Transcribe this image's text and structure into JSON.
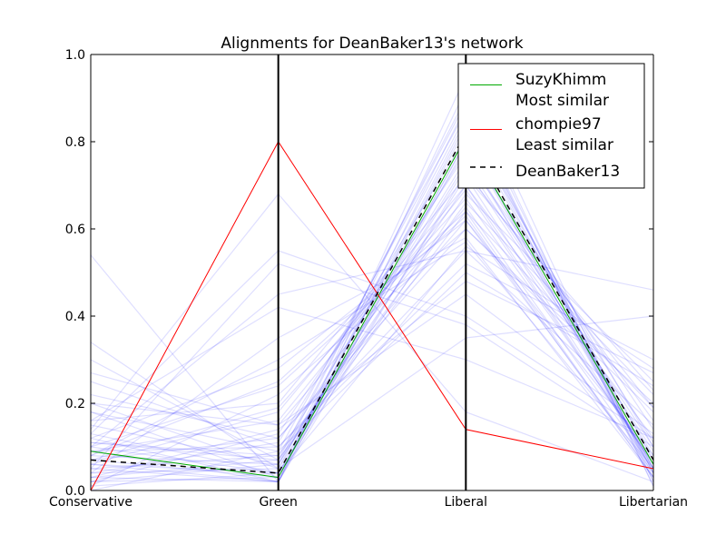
{
  "chart_data": {
    "type": "line",
    "title": "Alignments for DeanBaker13's network",
    "categories": [
      "Conservative",
      "Green",
      "Liberal",
      "Libertarian"
    ],
    "ylim": [
      0.0,
      1.0
    ],
    "yticks": [
      "0.0",
      "0.2",
      "0.4",
      "0.6",
      "0.8",
      "1.0"
    ],
    "grid": false,
    "legend_placement": "top-right",
    "colors": {
      "most_similar": "#00aa00",
      "least_similar": "#ff0000",
      "focus": "#000000",
      "background_lines": "#0000ff"
    },
    "legend": [
      {
        "line1": "SuzyKhimm",
        "line2": "Most similar",
        "style": "solid",
        "color": "#00aa00"
      },
      {
        "line1": "chompie97",
        "line2": "Least similar",
        "style": "solid",
        "color": "#ff0000"
      },
      {
        "line1": "DeanBaker13",
        "line2": "",
        "style": "dashed",
        "color": "#000000"
      }
    ],
    "series": [
      {
        "name": "SuzyKhimm",
        "role": "most_similar",
        "values": [
          0.09,
          0.03,
          0.81,
          0.06
        ]
      },
      {
        "name": "chompie97",
        "role": "least_similar",
        "values": [
          0.0,
          0.8,
          0.14,
          0.05
        ]
      },
      {
        "name": "DeanBaker13",
        "role": "focus",
        "values": [
          0.07,
          0.04,
          0.82,
          0.07
        ]
      }
    ],
    "background_series": [
      [
        0.54,
        0.02,
        0.8,
        0.05
      ],
      [
        0.34,
        0.05,
        0.75,
        0.1
      ],
      [
        0.3,
        0.07,
        0.7,
        0.12
      ],
      [
        0.25,
        0.1,
        0.55,
        0.15
      ],
      [
        0.22,
        0.12,
        0.62,
        0.08
      ],
      [
        0.2,
        0.15,
        0.65,
        0.05
      ],
      [
        0.18,
        0.03,
        0.85,
        0.04
      ],
      [
        0.16,
        0.2,
        0.72,
        0.06
      ],
      [
        0.15,
        0.06,
        0.9,
        0.03
      ],
      [
        0.14,
        0.68,
        0.18,
        0.02
      ],
      [
        0.13,
        0.55,
        0.4,
        0.12
      ],
      [
        0.12,
        0.28,
        0.62,
        0.04
      ],
      [
        0.11,
        0.08,
        0.78,
        0.05
      ],
      [
        0.1,
        0.45,
        0.55,
        0.46
      ],
      [
        0.1,
        0.04,
        0.68,
        0.25
      ],
      [
        0.09,
        0.1,
        0.52,
        0.3
      ],
      [
        0.09,
        0.02,
        0.88,
        0.02
      ],
      [
        0.08,
        0.06,
        0.74,
        0.09
      ],
      [
        0.08,
        0.25,
        0.64,
        0.03
      ],
      [
        0.07,
        0.03,
        0.8,
        0.11
      ],
      [
        0.07,
        0.12,
        0.6,
        0.2
      ],
      [
        0.06,
        0.04,
        0.83,
        0.07
      ],
      [
        0.06,
        0.18,
        0.7,
        0.06
      ],
      [
        0.05,
        0.02,
        0.92,
        0.01
      ],
      [
        0.05,
        0.08,
        0.66,
        0.22
      ],
      [
        0.04,
        0.05,
        0.86,
        0.05
      ],
      [
        0.04,
        0.35,
        0.58,
        0.03
      ],
      [
        0.03,
        0.02,
        0.79,
        0.14
      ],
      [
        0.03,
        0.14,
        0.48,
        0.27
      ],
      [
        0.02,
        0.06,
        0.76,
        0.16
      ],
      [
        0.02,
        0.03,
        0.84,
        0.1
      ],
      [
        0.01,
        0.22,
        0.6,
        0.18
      ],
      [
        0.01,
        0.04,
        0.72,
        0.23
      ],
      [
        0.0,
        0.09,
        0.87,
        0.04
      ],
      [
        0.12,
        0.02,
        0.95,
        0.02
      ],
      [
        0.2,
        0.05,
        0.35,
        0.4
      ],
      [
        0.16,
        0.42,
        0.3,
        0.12
      ],
      [
        0.27,
        0.15,
        0.45,
        0.13
      ],
      [
        0.05,
        0.52,
        0.38,
        0.1
      ],
      [
        0.08,
        0.3,
        0.57,
        0.05
      ],
      [
        0.11,
        0.07,
        0.64,
        0.19
      ],
      [
        0.04,
        0.11,
        0.81,
        0.04
      ],
      [
        0.06,
        0.02,
        0.73,
        0.19
      ],
      [
        0.09,
        0.16,
        0.69,
        0.06
      ],
      [
        0.03,
        0.07,
        0.89,
        0.01
      ],
      [
        0.13,
        0.04,
        0.56,
        0.28
      ],
      [
        0.07,
        0.19,
        0.67,
        0.07
      ],
      [
        0.02,
        0.13,
        0.77,
        0.08
      ],
      [
        0.18,
        0.09,
        0.5,
        0.24
      ],
      [
        0.1,
        0.24,
        0.63,
        0.03
      ]
    ]
  }
}
